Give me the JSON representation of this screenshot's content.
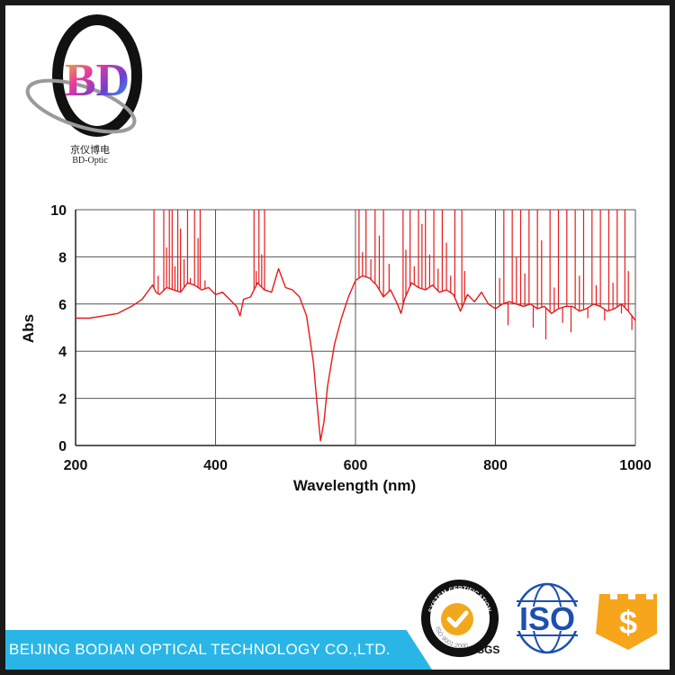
{
  "logo": {
    "mark": "BD",
    "name_cn": "京仪博电",
    "name_en": "BD-Optic"
  },
  "chart_data": {
    "type": "line",
    "title": "",
    "xlabel": "Wavelength (nm)",
    "ylabel": "Abs",
    "xlim": [
      200,
      1000
    ],
    "ylim": [
      0,
      10
    ],
    "xticks": [
      200,
      400,
      600,
      800,
      1000
    ],
    "yticks": [
      0,
      2,
      4,
      6,
      8,
      10
    ],
    "grid": true,
    "series": [
      {
        "color": "#e8191b",
        "x": [
          200,
          220,
          240,
          260,
          280,
          295,
          305,
          310,
          315,
          320,
          330,
          340,
          350,
          360,
          370,
          380,
          390,
          400,
          410,
          420,
          430,
          435,
          440,
          450,
          460,
          470,
          480,
          490,
          500,
          510,
          520,
          530,
          540,
          545,
          548,
          550,
          555,
          560,
          570,
          580,
          590,
          600,
          610,
          620,
          630,
          640,
          650,
          660,
          665,
          670,
          680,
          690,
          700,
          710,
          720,
          730,
          740,
          750,
          760,
          770,
          780,
          790,
          800,
          810,
          820,
          830,
          840,
          850,
          860,
          870,
          880,
          890,
          900,
          910,
          920,
          930,
          940,
          950,
          960,
          970,
          980,
          990,
          1000
        ],
        "values": [
          5.4,
          5.4,
          5.5,
          5.6,
          5.9,
          6.2,
          6.6,
          6.8,
          6.5,
          6.4,
          6.7,
          6.6,
          6.5,
          6.9,
          6.8,
          6.6,
          6.7,
          6.4,
          6.5,
          6.2,
          5.9,
          5.5,
          6.2,
          6.3,
          6.9,
          6.6,
          6.5,
          7.5,
          6.7,
          6.6,
          6.3,
          5.5,
          3.5,
          1.8,
          0.8,
          0.2,
          1.0,
          2.5,
          4.3,
          5.4,
          6.3,
          7.0,
          7.2,
          7.1,
          6.8,
          6.3,
          6.6,
          6.0,
          5.6,
          6.2,
          6.9,
          6.7,
          6.6,
          6.8,
          6.5,
          6.6,
          6.4,
          5.7,
          6.4,
          6.1,
          6.5,
          6.0,
          5.8,
          6.0,
          6.1,
          6.0,
          5.9,
          6.0,
          5.8,
          5.9,
          5.6,
          5.8,
          5.9,
          5.9,
          5.7,
          5.8,
          6.0,
          5.9,
          5.7,
          5.8,
          6.0,
          5.7,
          5.3
        ],
        "spikes": [
          [
            312,
            10
          ],
          [
            318,
            7.2
          ],
          [
            326,
            10
          ],
          [
            330,
            8.4
          ],
          [
            334,
            10
          ],
          [
            338,
            10
          ],
          [
            342,
            7.6
          ],
          [
            346,
            10
          ],
          [
            350,
            9.2
          ],
          [
            355,
            7.9
          ],
          [
            360,
            10
          ],
          [
            364,
            7.1
          ],
          [
            370,
            10
          ],
          [
            375,
            8.8
          ],
          [
            378,
            10
          ],
          [
            385,
            7.0
          ],
          [
            455,
            10
          ],
          [
            458,
            7.4
          ],
          [
            462,
            10
          ],
          [
            466,
            8.1
          ],
          [
            470,
            10
          ],
          [
            605,
            10
          ],
          [
            610,
            8.2
          ],
          [
            615,
            10
          ],
          [
            622,
            7.9
          ],
          [
            628,
            10
          ],
          [
            634,
            8.9
          ],
          [
            640,
            10
          ],
          [
            648,
            7.7
          ],
          [
            668,
            10
          ],
          [
            672,
            8.3
          ],
          [
            678,
            10
          ],
          [
            684,
            7.6
          ],
          [
            690,
            10
          ],
          [
            695,
            9.4
          ],
          [
            700,
            10
          ],
          [
            706,
            8.1
          ],
          [
            712,
            10
          ],
          [
            718,
            7.5
          ],
          [
            724,
            10
          ],
          [
            730,
            8.6
          ],
          [
            736,
            7.2
          ],
          [
            742,
            10
          ],
          [
            752,
            10
          ],
          [
            756,
            7.4
          ],
          [
            806,
            7.1
          ],
          [
            812,
            10
          ],
          [
            818,
            5.1
          ],
          [
            824,
            10
          ],
          [
            830,
            8.0
          ],
          [
            836,
            10
          ],
          [
            842,
            7.3
          ],
          [
            848,
            10
          ],
          [
            854,
            5.0
          ],
          [
            860,
            10
          ],
          [
            866,
            8.7
          ],
          [
            872,
            4.5
          ],
          [
            878,
            10
          ],
          [
            884,
            6.7
          ],
          [
            890,
            10
          ],
          [
            896,
            5.2
          ],
          [
            902,
            10
          ],
          [
            908,
            4.8
          ],
          [
            914,
            10
          ],
          [
            920,
            7.2
          ],
          [
            926,
            10
          ],
          [
            932,
            5.4
          ],
          [
            938,
            10
          ],
          [
            944,
            6.8
          ],
          [
            950,
            10
          ],
          [
            956,
            5.3
          ],
          [
            962,
            10
          ],
          [
            968,
            6.9
          ],
          [
            974,
            10
          ],
          [
            980,
            5.6
          ],
          [
            985,
            10
          ],
          [
            990,
            7.4
          ],
          [
            995,
            4.9
          ]
        ]
      }
    ]
  },
  "footer": {
    "company": "BEIJING BODIAN OPTICAL TECHNOLOGY CO.,LTD.",
    "sgs_label": "SGS",
    "sgs_ring_text": "SYSTEM CERTIFICATION",
    "sgs_ring_text2": "ISO 9001:2000",
    "iso_label": "ISO",
    "dollar_symbol": "$"
  }
}
